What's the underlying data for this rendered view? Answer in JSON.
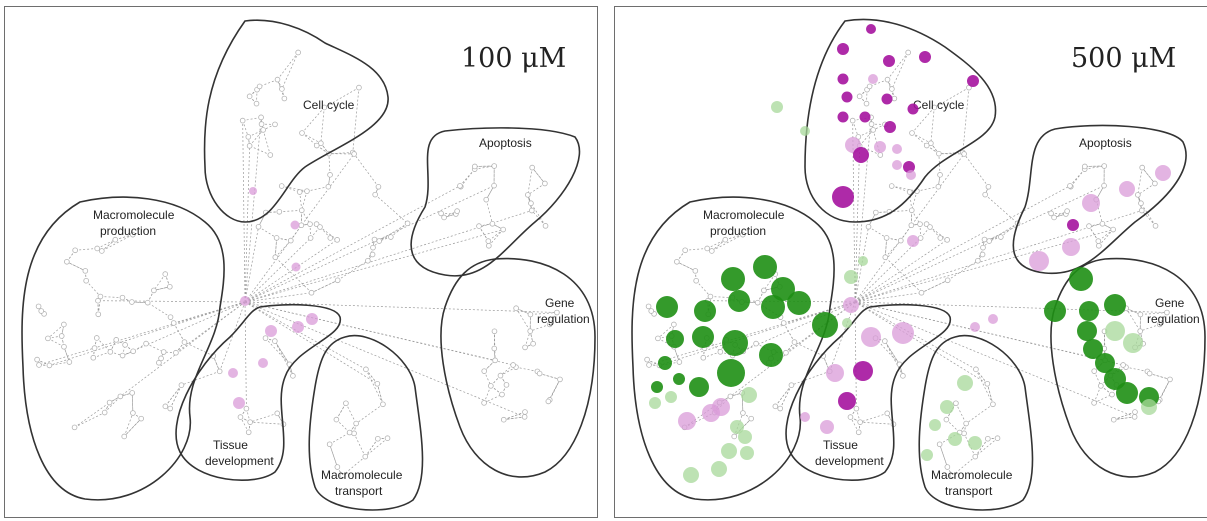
{
  "panels": [
    {
      "concentration": "100 μM",
      "clusters": {
        "cell_cycle": [
          "Cell cycle"
        ],
        "apoptosis": [
          "Apoptosis"
        ],
        "macromolecule_production": [
          "Macromolecule",
          "production"
        ],
        "gene_regulation": [
          "Gene",
          "regulation"
        ],
        "tissue_development": [
          "Tissue",
          "development"
        ],
        "macromolecule_transport": [
          "Macromolecule",
          "transport"
        ]
      }
    },
    {
      "concentration": "500 μM",
      "clusters": {
        "cell_cycle": [
          "Cell cycle"
        ],
        "apoptosis": [
          "Apoptosis"
        ],
        "macromolecule_production": [
          "Macromolecule",
          "production"
        ],
        "gene_regulation": [
          "Gene",
          "regulation"
        ],
        "tissue_development": [
          "Tissue",
          "development"
        ],
        "macromolecule_transport": [
          "Macromolecule",
          "transport"
        ]
      }
    }
  ],
  "colors": {
    "purple_strong": "#a5139f",
    "purple_light": "#d99bd8",
    "green_strong": "#1e8f14",
    "green_light": "#a7d89a",
    "region_outline": "#333333",
    "network_edges": "#9a9a9a"
  }
}
